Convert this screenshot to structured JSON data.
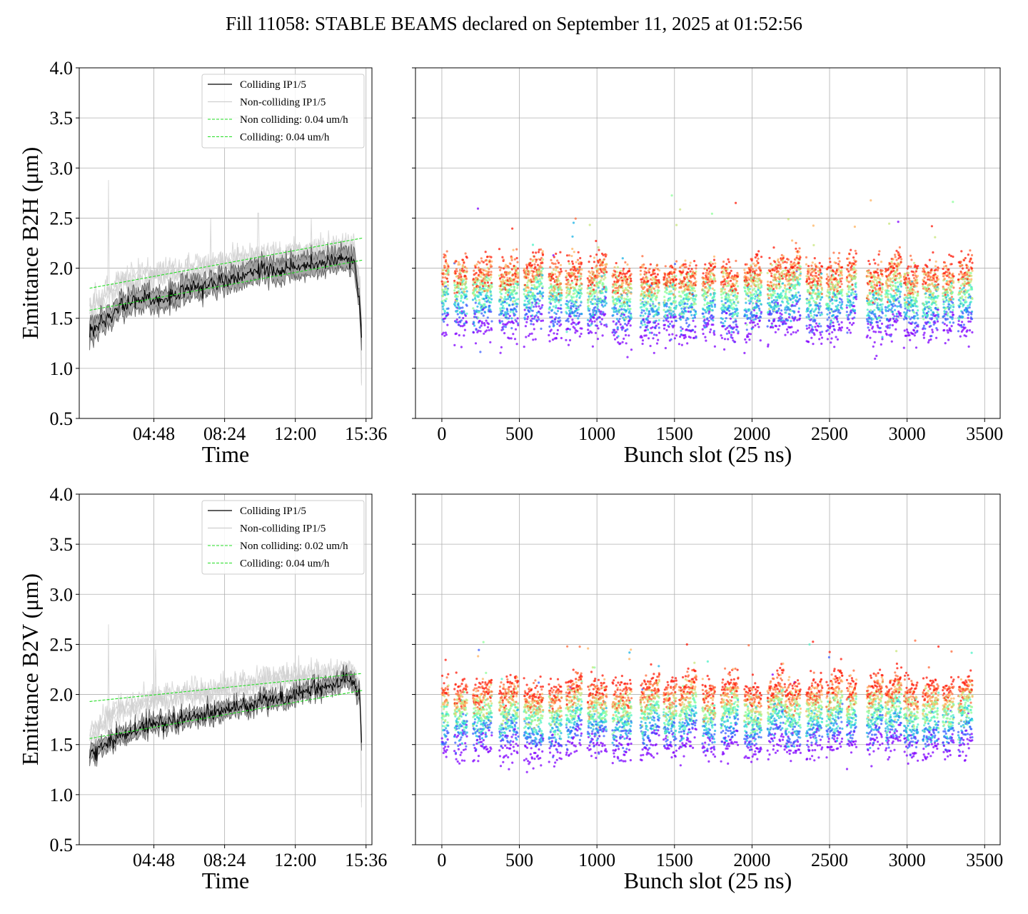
{
  "figure": {
    "title": "Fill 11058: STABLE BEAMS declared on September 11, 2025 at 01:52:56"
  },
  "chart_data": [
    {
      "id": "b2h-time",
      "type": "line",
      "xlabel": "Time",
      "ylabel": "Emittance B2H (μm)",
      "x_ticks": [
        "04:48",
        "08:24",
        "12:00",
        "15:36"
      ],
      "x_tick_hours": [
        4.8,
        8.4,
        12.0,
        15.6
      ],
      "xlim_hours": [
        1.0,
        15.9
      ],
      "ylim": [
        0.5,
        4.0
      ],
      "y_ticks": [
        "0.5",
        "1.0",
        "1.5",
        "2.0",
        "2.5",
        "3.0",
        "3.5",
        "4.0"
      ],
      "grid": true,
      "legend_position": "upper center",
      "series": [
        {
          "name": "Colliding IP1/5",
          "color": "#000000",
          "style": "solid",
          "x": [
            1.53,
            2.2,
            3.0,
            4.0,
            5.0,
            6.0,
            7.0,
            8.0,
            9.0,
            10.0,
            11.0,
            12.0,
            13.0,
            14.0,
            14.6,
            15.0,
            15.3,
            15.4
          ],
          "y": [
            1.35,
            1.45,
            1.62,
            1.72,
            1.68,
            1.75,
            1.82,
            1.86,
            1.92,
            1.98,
            1.98,
            2.0,
            2.03,
            2.08,
            2.1,
            2.08,
            1.6,
            1.15
          ],
          "band": 0.1
        },
        {
          "name": "Non-colliding IP1/5",
          "color": "#cfcfcf",
          "style": "solid",
          "x": [
            1.53,
            2.2,
            3.0,
            4.0,
            5.0,
            6.0,
            7.0,
            8.0,
            9.0,
            10.0,
            11.0,
            12.0,
            13.0,
            14.0,
            14.6,
            15.0,
            15.3,
            15.4
          ],
          "y": [
            1.6,
            1.7,
            1.85,
            1.9,
            1.95,
            1.95,
            2.0,
            2.02,
            2.08,
            2.1,
            2.12,
            2.15,
            2.17,
            2.2,
            2.22,
            2.18,
            1.8,
            0.5
          ],
          "spikes": [
            {
              "x": 2.5,
              "y": 2.88
            },
            {
              "x": 7.7,
              "y": 2.5
            },
            {
              "x": 10.1,
              "y": 2.55
            },
            {
              "x": 12.8,
              "y": 2.5
            }
          ]
        },
        {
          "name": "Non colliding: 0.04 um/h",
          "color": "#22dd22",
          "style": "dashed",
          "x": [
            1.53,
            15.4
          ],
          "y": [
            1.8,
            2.3
          ]
        },
        {
          "name": "Colliding: 0.04 um/h",
          "color": "#22dd22",
          "style": "dashed",
          "x": [
            1.53,
            15.4
          ],
          "y": [
            1.58,
            2.08
          ]
        }
      ]
    },
    {
      "id": "b2h-bunch",
      "type": "scatter",
      "xlabel": "Bunch slot (25 ns)",
      "ylabel": "",
      "x_ticks": [
        "0",
        "500",
        "1000",
        "1500",
        "2000",
        "2500",
        "3000",
        "3500"
      ],
      "xlim": [
        -170,
        3600
      ],
      "ylim": [
        0.5,
        4.0
      ],
      "grid": true,
      "colormap": "rainbow",
      "colors": [
        "#8000ff",
        "#3a5cff",
        "#19b3e6",
        "#4df2c7",
        "#8cff9a",
        "#c7e67a",
        "#ffb360",
        "#ff6a3a",
        "#ff1a0a"
      ],
      "trains": [
        [
          0,
          40
        ],
        [
          80,
          160
        ],
        [
          200,
          320
        ],
        [
          370,
          490
        ],
        [
          530,
          650
        ],
        [
          690,
          770
        ],
        [
          800,
          900
        ],
        [
          940,
          1060
        ],
        [
          1100,
          1220
        ],
        [
          1280,
          1400
        ],
        [
          1430,
          1510
        ],
        [
          1530,
          1640
        ],
        [
          1680,
          1760
        ],
        [
          1800,
          1910
        ],
        [
          1950,
          2060
        ],
        [
          2100,
          2200
        ],
        [
          2210,
          2310
        ],
        [
          2350,
          2450
        ],
        [
          2480,
          2580
        ],
        [
          2610,
          2670
        ],
        [
          2740,
          2840
        ],
        [
          2860,
          2960
        ],
        [
          2980,
          3070
        ],
        [
          3100,
          3200
        ],
        [
          3230,
          3300
        ],
        [
          3330,
          3420
        ]
      ],
      "level_means": [
        1.38,
        1.52,
        1.6,
        1.65,
        1.72,
        1.8,
        1.88,
        1.9,
        1.92
      ],
      "level_spread": 0.09,
      "outliers_max": 2.73
    },
    {
      "id": "b2v-time",
      "type": "line",
      "xlabel": "Time",
      "ylabel": "Emittance B2V (μm)",
      "x_ticks": [
        "04:48",
        "08:24",
        "12:00",
        "15:36"
      ],
      "x_tick_hours": [
        4.8,
        8.4,
        12.0,
        15.6
      ],
      "xlim_hours": [
        1.0,
        15.9
      ],
      "ylim": [
        0.5,
        4.0
      ],
      "y_ticks": [
        "0.5",
        "1.0",
        "1.5",
        "2.0",
        "2.5",
        "3.0",
        "3.5",
        "4.0"
      ],
      "grid": true,
      "legend_position": "upper center",
      "series": [
        {
          "name": "Colliding IP1/5",
          "color": "#000000",
          "style": "solid",
          "x": [
            1.53,
            2.2,
            3.0,
            4.0,
            5.0,
            6.0,
            7.0,
            8.0,
            9.0,
            10.0,
            11.0,
            12.0,
            13.0,
            14.0,
            14.6,
            15.0,
            15.3,
            15.4
          ],
          "y": [
            1.38,
            1.5,
            1.58,
            1.65,
            1.7,
            1.74,
            1.78,
            1.82,
            1.86,
            1.9,
            1.95,
            2.0,
            2.05,
            2.1,
            2.15,
            2.12,
            1.95,
            1.3
          ],
          "band": 0.07
        },
        {
          "name": "Non-colliding IP1/5",
          "color": "#cfcfcf",
          "style": "solid",
          "x": [
            1.53,
            2.2,
            3.0,
            4.0,
            5.0,
            6.0,
            7.0,
            8.0,
            9.0,
            10.0,
            11.0,
            12.0,
            13.0,
            14.0,
            14.6,
            15.0,
            15.3,
            15.4
          ],
          "y": [
            1.6,
            1.72,
            1.85,
            1.9,
            1.95,
            1.98,
            2.02,
            2.05,
            2.08,
            2.12,
            2.15,
            2.18,
            2.2,
            2.22,
            2.24,
            2.2,
            2.05,
            0.5
          ],
          "spikes": [
            {
              "x": 2.5,
              "y": 2.7
            },
            {
              "x": 4.9,
              "y": 2.45
            },
            {
              "x": 15.4,
              "y": 2.38
            }
          ]
        },
        {
          "name": "Non colliding: 0.02 um/h",
          "color": "#22dd22",
          "style": "dashed",
          "x": [
            1.53,
            15.4
          ],
          "y": [
            1.93,
            2.21
          ]
        },
        {
          "name": "Colliding: 0.04 um/h",
          "color": "#22dd22",
          "style": "dashed",
          "x": [
            1.53,
            15.4
          ],
          "y": [
            1.56,
            2.04
          ]
        }
      ]
    },
    {
      "id": "b2v-bunch",
      "type": "scatter",
      "xlabel": "Bunch slot (25 ns)",
      "ylabel": "",
      "x_ticks": [
        "0",
        "500",
        "1000",
        "1500",
        "2000",
        "2500",
        "3000",
        "3500"
      ],
      "xlim": [
        -170,
        3600
      ],
      "ylim": [
        0.5,
        4.0
      ],
      "grid": true,
      "colormap": "rainbow",
      "colors": [
        "#8000ff",
        "#3a5cff",
        "#19b3e6",
        "#4df2c7",
        "#8cff9a",
        "#c7e67a",
        "#ffb360",
        "#ff6a3a",
        "#ff1a0a"
      ],
      "trains": [
        [
          0,
          40
        ],
        [
          80,
          160
        ],
        [
          200,
          320
        ],
        [
          370,
          490
        ],
        [
          530,
          650
        ],
        [
          690,
          770
        ],
        [
          800,
          900
        ],
        [
          940,
          1060
        ],
        [
          1100,
          1220
        ],
        [
          1280,
          1400
        ],
        [
          1430,
          1510
        ],
        [
          1530,
          1640
        ],
        [
          1680,
          1760
        ],
        [
          1800,
          1910
        ],
        [
          1950,
          2060
        ],
        [
          2100,
          2200
        ],
        [
          2210,
          2310
        ],
        [
          2350,
          2450
        ],
        [
          2480,
          2580
        ],
        [
          2610,
          2670
        ],
        [
          2740,
          2840
        ],
        [
          2860,
          2960
        ],
        [
          2980,
          3070
        ],
        [
          3100,
          3200
        ],
        [
          3230,
          3300
        ],
        [
          3330,
          3420
        ]
      ],
      "level_means": [
        1.45,
        1.58,
        1.65,
        1.72,
        1.78,
        1.85,
        1.92,
        1.97,
        2.02
      ],
      "level_spread": 0.08,
      "outliers_max": 2.54
    }
  ]
}
